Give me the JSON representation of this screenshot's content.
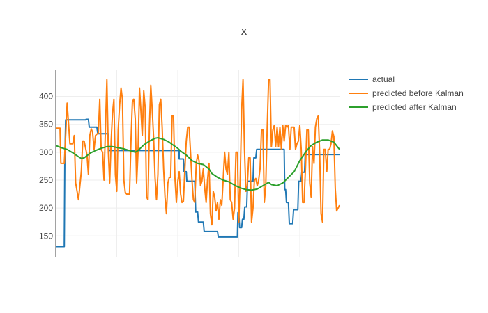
{
  "chart_data": {
    "type": "line",
    "title": "x",
    "xlabel": "",
    "ylabel": "",
    "xlim": [
      0,
      100
    ],
    "ylim": [
      113,
      448
    ],
    "yticks": [
      150,
      200,
      250,
      300,
      350,
      400
    ],
    "xticks": [
      21.5,
      43,
      64.5,
      86
    ],
    "grid": true,
    "legend_position": "top-right",
    "series": [
      {
        "name": "actual",
        "color": "#1f77b4",
        "points": [
          [
            0,
            131
          ],
          [
            3,
            131
          ],
          [
            3.2,
            290
          ],
          [
            3.5,
            358
          ],
          [
            10.5,
            358
          ],
          [
            10.7,
            359
          ],
          [
            11.5,
            359
          ],
          [
            11.8,
            345
          ],
          [
            14.5,
            345
          ],
          [
            14.8,
            333
          ],
          [
            18.5,
            333
          ],
          [
            18.8,
            303
          ],
          [
            43.5,
            303
          ],
          [
            43.5,
            288
          ],
          [
            45,
            288
          ],
          [
            45.2,
            265
          ],
          [
            46,
            265
          ],
          [
            46.2,
            248
          ],
          [
            49,
            248
          ],
          [
            49.3,
            193
          ],
          [
            50,
            193
          ],
          [
            50.3,
            175
          ],
          [
            52,
            175
          ],
          [
            52.3,
            158
          ],
          [
            57,
            158
          ],
          [
            57.3,
            148
          ],
          [
            64,
            148
          ],
          [
            64.2,
            192
          ],
          [
            64.5,
            192
          ],
          [
            64.8,
            165
          ],
          [
            65.5,
            165
          ],
          [
            65.8,
            180
          ],
          [
            66.3,
            180
          ],
          [
            66.6,
            202
          ],
          [
            67.3,
            202
          ],
          [
            67.6,
            248
          ],
          [
            69.5,
            248
          ],
          [
            69.8,
            290
          ],
          [
            70.5,
            290
          ],
          [
            70.8,
            305
          ],
          [
            80.5,
            305
          ],
          [
            80.7,
            233
          ],
          [
            81,
            233
          ],
          [
            81.3,
            210
          ],
          [
            82,
            210
          ],
          [
            82.3,
            172
          ],
          [
            83.5,
            172
          ],
          [
            83.8,
            197
          ],
          [
            85.3,
            197
          ],
          [
            85.6,
            248
          ],
          [
            86.4,
            248
          ],
          [
            86.7,
            264
          ],
          [
            87.7,
            264
          ],
          [
            87.9,
            296
          ],
          [
            100,
            296
          ]
        ]
      },
      {
        "name": "predicted before Kalman",
        "color": "#ff7f0e",
        "points": [
          [
            0,
            343
          ],
          [
            1.5,
            343
          ],
          [
            1.8,
            280
          ],
          [
            3,
            280
          ],
          [
            3.5,
            330
          ],
          [
            4,
            388
          ],
          [
            5,
            315
          ],
          [
            6,
            315
          ],
          [
            6.5,
            330
          ],
          [
            7,
            245
          ],
          [
            8,
            215
          ],
          [
            9,
            265
          ],
          [
            9.5,
            320
          ],
          [
            10,
            320
          ],
          [
            11,
            295
          ],
          [
            11.5,
            260
          ],
          [
            12,
            330
          ],
          [
            12.5,
            342
          ],
          [
            13,
            335
          ],
          [
            13.5,
            305
          ],
          [
            14,
            330
          ],
          [
            15,
            335
          ],
          [
            15.5,
            395
          ],
          [
            16,
            305
          ],
          [
            16.5,
            300
          ],
          [
            17,
            250
          ],
          [
            17.5,
            340
          ],
          [
            18,
            430
          ],
          [
            18.5,
            305
          ],
          [
            19,
            245
          ],
          [
            19.5,
            320
          ],
          [
            20,
            370
          ],
          [
            20.5,
            395
          ],
          [
            21,
            260
          ],
          [
            21.5,
            230
          ],
          [
            22,
            340
          ],
          [
            22.5,
            385
          ],
          [
            23,
            415
          ],
          [
            23.5,
            395
          ],
          [
            24,
            250
          ],
          [
            24.5,
            228
          ],
          [
            25,
            225
          ],
          [
            26,
            225
          ],
          [
            26.5,
            320
          ],
          [
            27,
            390
          ],
          [
            27.5,
            395
          ],
          [
            28,
            360
          ],
          [
            28.5,
            245
          ],
          [
            29,
            300
          ],
          [
            29.5,
            415
          ],
          [
            30,
            375
          ],
          [
            30.5,
            330
          ],
          [
            31,
            410
          ],
          [
            31.5,
            380
          ],
          [
            32,
            220
          ],
          [
            32.5,
            215
          ],
          [
            33,
            345
          ],
          [
            33.5,
            420
          ],
          [
            34,
            375
          ],
          [
            34.5,
            325
          ],
          [
            35,
            255
          ],
          [
            35.5,
            215
          ],
          [
            36,
            260
          ],
          [
            36.5,
            385
          ],
          [
            37,
            395
          ],
          [
            37.5,
            345
          ],
          [
            38,
            270
          ],
          [
            38.5,
            220
          ],
          [
            39,
            190
          ],
          [
            39.5,
            245
          ],
          [
            40,
            255
          ],
          [
            40.5,
            255
          ],
          [
            41,
            365
          ],
          [
            41.5,
            365
          ],
          [
            42,
            255
          ],
          [
            42.5,
            210
          ],
          [
            43,
            248
          ],
          [
            43.5,
            265
          ],
          [
            44,
            225
          ],
          [
            44.5,
            210
          ],
          [
            45,
            212
          ],
          [
            45.5,
            270
          ],
          [
            46,
            320
          ],
          [
            46.5,
            345
          ],
          [
            47,
            345
          ],
          [
            47.5,
            300
          ],
          [
            48,
            250
          ],
          [
            48.5,
            215
          ],
          [
            49,
            210
          ],
          [
            49.5,
            280
          ],
          [
            50,
            295
          ],
          [
            50.5,
            285
          ],
          [
            51,
            240
          ],
          [
            51.5,
            248
          ],
          [
            52,
            270
          ],
          [
            52.5,
            235
          ],
          [
            53,
            210
          ],
          [
            53.5,
            250
          ],
          [
            54,
            280
          ],
          [
            54.5,
            190
          ],
          [
            55,
            170
          ],
          [
            55.5,
            230
          ],
          [
            56,
            220
          ],
          [
            56.5,
            195
          ],
          [
            57,
            210
          ],
          [
            57.5,
            180
          ],
          [
            58,
            215
          ],
          [
            58.5,
            205
          ],
          [
            59,
            250
          ],
          [
            59.5,
            300
          ],
          [
            60,
            270
          ],
          [
            60.5,
            260
          ],
          [
            61,
            300
          ],
          [
            61.5,
            215
          ],
          [
            62,
            210
          ],
          [
            62.5,
            180
          ],
          [
            63,
            200
          ],
          [
            63.5,
            300
          ],
          [
            64,
            300
          ],
          [
            64.5,
            175
          ],
          [
            65,
            255
          ],
          [
            65.5,
            375
          ],
          [
            66,
            430
          ],
          [
            66.5,
            305
          ],
          [
            67,
            230
          ],
          [
            67.5,
            240
          ],
          [
            68,
            290
          ],
          [
            68.5,
            290
          ],
          [
            69,
            175
          ],
          [
            69.5,
            200
          ],
          [
            70,
            250
          ],
          [
            70.5,
            253
          ],
          [
            71,
            240
          ],
          [
            71.5,
            250
          ],
          [
            72,
            270
          ],
          [
            72.5,
            340
          ],
          [
            73,
            340
          ],
          [
            73.5,
            210
          ],
          [
            74,
            240
          ],
          [
            74.5,
            340
          ],
          [
            75,
            430
          ],
          [
            75.5,
            430
          ],
          [
            76,
            310
          ],
          [
            76.5,
            340
          ],
          [
            77,
            348
          ],
          [
            77.5,
            310
          ],
          [
            78,
            345
          ],
          [
            78.5,
            310
          ],
          [
            79,
            345
          ],
          [
            79.5,
            305
          ],
          [
            80,
            348
          ],
          [
            80.5,
            320
          ],
          [
            81,
            348
          ],
          [
            81.5,
            345
          ],
          [
            82,
            348
          ],
          [
            82.5,
            305
          ],
          [
            83,
            345
          ],
          [
            83.5,
            345
          ],
          [
            84,
            345
          ],
          [
            84.5,
            305
          ],
          [
            85,
            315
          ],
          [
            85.5,
            320
          ],
          [
            86,
            348
          ],
          [
            86.5,
            305
          ],
          [
            87,
            210
          ],
          [
            87.5,
            210
          ],
          [
            88,
            272
          ],
          [
            88.5,
            340
          ],
          [
            89,
            340
          ],
          [
            89.5,
            245
          ],
          [
            90,
            220
          ],
          [
            90.5,
            310
          ],
          [
            91,
            280
          ],
          [
            91.5,
            345
          ],
          [
            92,
            360
          ],
          [
            92.5,
            365
          ],
          [
            93,
            300
          ],
          [
            93.5,
            190
          ],
          [
            94,
            175
          ],
          [
            94.5,
            305
          ],
          [
            95,
            305
          ],
          [
            95.5,
            265
          ],
          [
            96,
            305
          ],
          [
            96.5,
            305
          ],
          [
            97,
            315
          ],
          [
            97.5,
            338
          ],
          [
            98,
            328
          ],
          [
            98.5,
            235
          ],
          [
            99,
            195
          ],
          [
            99.5,
            200
          ],
          [
            100,
            205
          ]
        ]
      },
      {
        "name": "predicted after Kalman",
        "color": "#2ca02c",
        "points": [
          [
            0,
            312
          ],
          [
            2,
            308
          ],
          [
            4,
            305
          ],
          [
            6,
            299
          ],
          [
            8,
            292
          ],
          [
            9,
            289
          ],
          [
            10,
            290
          ],
          [
            12,
            298
          ],
          [
            14,
            303
          ],
          [
            16,
            307
          ],
          [
            18,
            310
          ],
          [
            20,
            310
          ],
          [
            22,
            308
          ],
          [
            24,
            306
          ],
          [
            26,
            303
          ],
          [
            28,
            300
          ],
          [
            29,
            303
          ],
          [
            31,
            313
          ],
          [
            33,
            320
          ],
          [
            35,
            325
          ],
          [
            36,
            326
          ],
          [
            38,
            323
          ],
          [
            40,
            318
          ],
          [
            41,
            314
          ],
          [
            43,
            307
          ],
          [
            44,
            302
          ],
          [
            46,
            295
          ],
          [
            48,
            285
          ],
          [
            50,
            280
          ],
          [
            52,
            278
          ],
          [
            54,
            270
          ],
          [
            55,
            262
          ],
          [
            57,
            255
          ],
          [
            59,
            250
          ],
          [
            61,
            247
          ],
          [
            63,
            241
          ],
          [
            65,
            236
          ],
          [
            67,
            233
          ],
          [
            69,
            232
          ],
          [
            71,
            234
          ],
          [
            73,
            240
          ],
          [
            75,
            246
          ],
          [
            76,
            242
          ],
          [
            78,
            240
          ],
          [
            80,
            245
          ],
          [
            82,
            255
          ],
          [
            84,
            265
          ],
          [
            86,
            285
          ],
          [
            88,
            300
          ],
          [
            90,
            312
          ],
          [
            92,
            318
          ],
          [
            94,
            322
          ],
          [
            96,
            322
          ],
          [
            98,
            318
          ],
          [
            100,
            305
          ]
        ]
      }
    ]
  },
  "legend": {
    "items": [
      {
        "label": "actual",
        "color": "#1f77b4"
      },
      {
        "label": "predicted before Kalman",
        "color": "#ff7f0e"
      },
      {
        "label": "predicted after Kalman",
        "color": "#2ca02c"
      }
    ]
  }
}
